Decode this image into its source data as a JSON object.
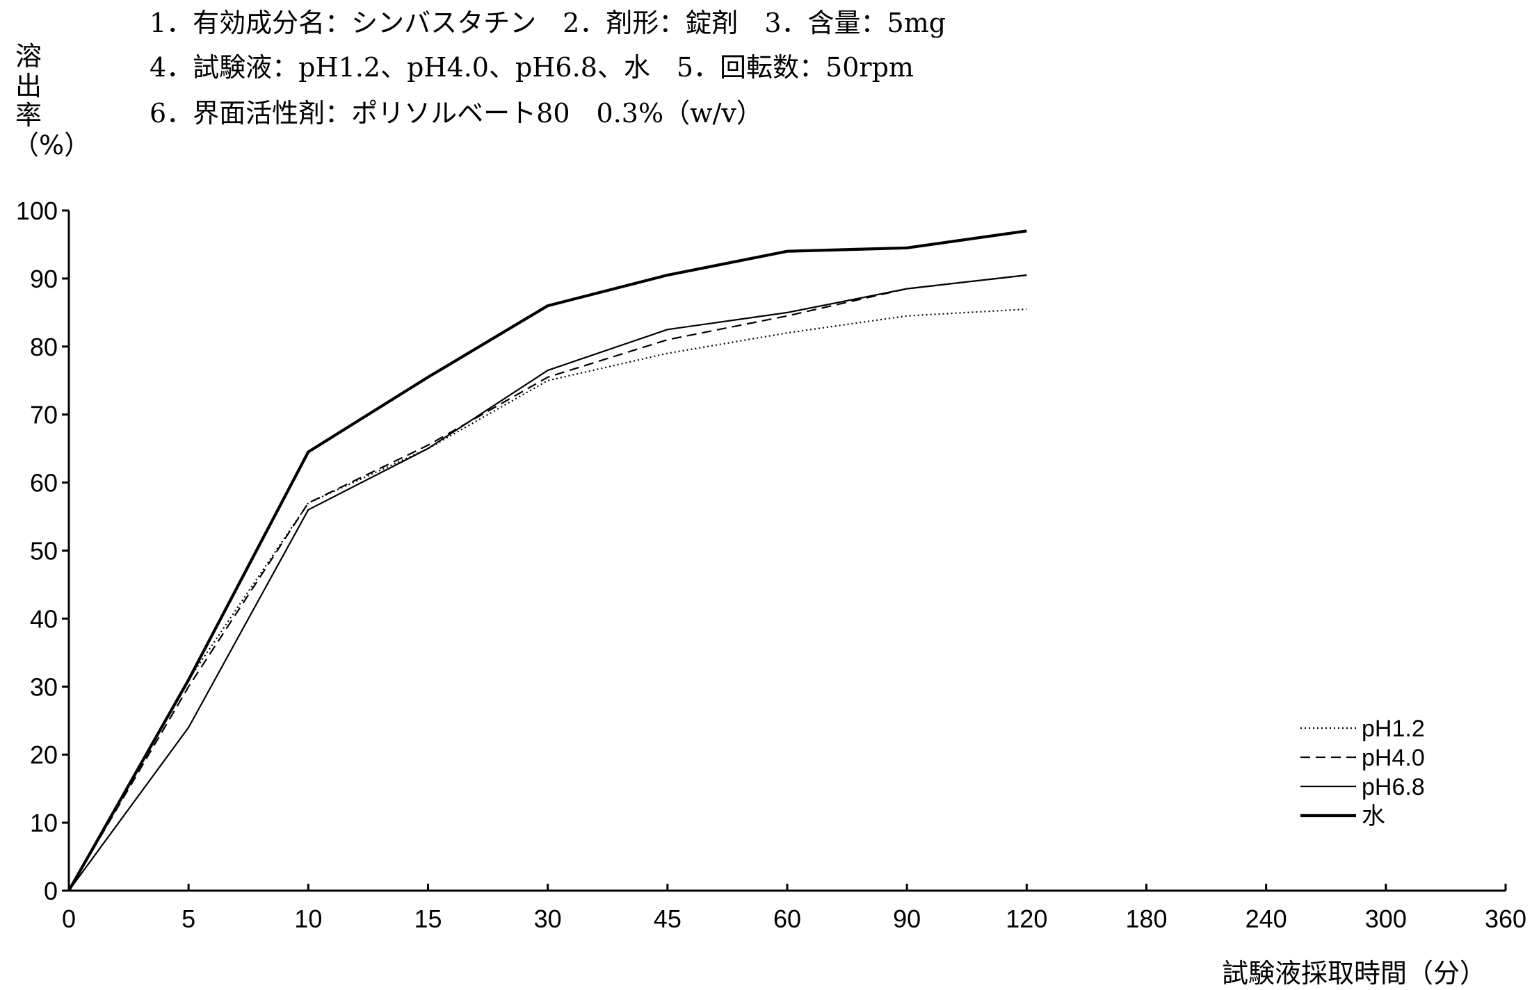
{
  "header": {
    "line1": "1．有効成分名：シンバスタチン　2．剤形：錠剤　3．含量：5mg",
    "line2": "4．試験液：pH1.2、pH4.0、pH6.8、水　5．回転数：50rpm",
    "line3": "6．界面活性剤：ポリソルベート80　0.3%（w/v）"
  },
  "chart_data": {
    "type": "line",
    "title": "",
    "xlabel": "試験液採取時間（分）",
    "ylabel": "溶出率（%）",
    "categories": [
      "0",
      "5",
      "10",
      "15",
      "30",
      "45",
      "60",
      "90",
      "120",
      "180",
      "240",
      "300",
      "360"
    ],
    "ylim": [
      0,
      100
    ],
    "yticks": [
      "0",
      "10",
      "20",
      "30",
      "40",
      "50",
      "60",
      "70",
      "80",
      "90",
      "100"
    ],
    "grid": false,
    "legend_position": "bottom-right",
    "series": [
      {
        "name": "pH1.2",
        "style": "dotted",
        "values": [
          0,
          31,
          57,
          65,
          75,
          79,
          82,
          84.5,
          85.5,
          null,
          null,
          null,
          null
        ]
      },
      {
        "name": "pH4.0",
        "style": "dashed",
        "values": [
          0,
          30,
          57,
          65.5,
          75.5,
          81,
          84.5,
          88.5,
          90.5,
          null,
          null,
          null,
          null
        ]
      },
      {
        "name": "pH6.8",
        "style": "solid-thin",
        "values": [
          0,
          24,
          56,
          65,
          76.5,
          82.5,
          85,
          88.5,
          90.5,
          null,
          null,
          null,
          null
        ]
      },
      {
        "name": "水",
        "style": "solid-thick",
        "values": [
          0,
          31,
          64.5,
          75.5,
          86,
          90.5,
          94,
          94.5,
          97,
          null,
          null,
          null,
          null
        ]
      }
    ]
  }
}
